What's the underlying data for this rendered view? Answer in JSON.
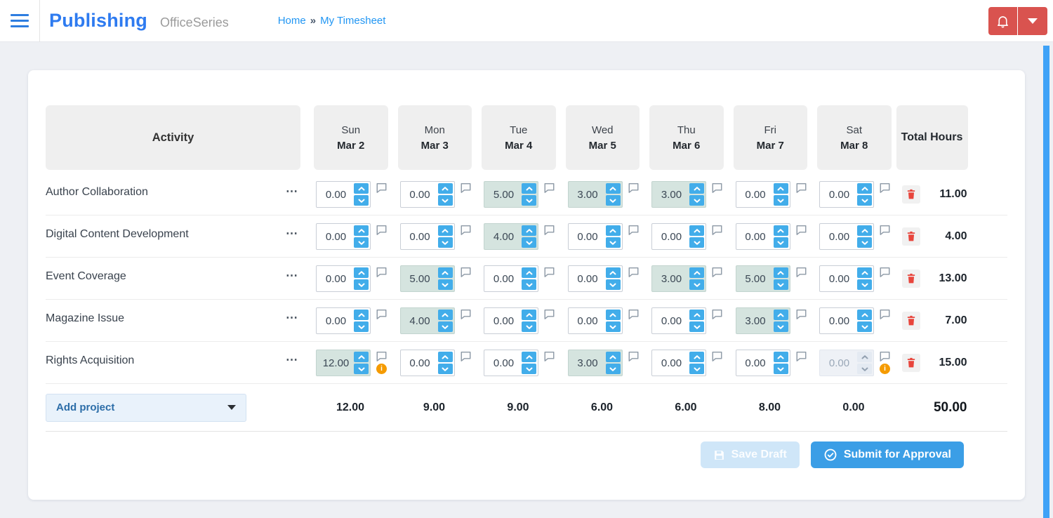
{
  "topbar": {
    "app_title": "Publishing",
    "app_subtitle": "OfficeSeries",
    "breadcrumb": {
      "home": "Home",
      "separator": "»",
      "current": "My Timesheet"
    }
  },
  "table": {
    "activity_header": "Activity",
    "total_header": "Total Hours",
    "menu_icon": "⋯",
    "days": [
      {
        "name": "Sun",
        "date": "Mar 2"
      },
      {
        "name": "Mon",
        "date": "Mar 3"
      },
      {
        "name": "Tue",
        "date": "Mar 4"
      },
      {
        "name": "Wed",
        "date": "Mar 5"
      },
      {
        "name": "Thu",
        "date": "Mar 6"
      },
      {
        "name": "Fri",
        "date": "Mar 7"
      },
      {
        "name": "Sat",
        "date": "Mar 8"
      }
    ],
    "rows": [
      {
        "activity": "Author Collaboration",
        "total": "11.00",
        "cells": [
          {
            "value": "0.00",
            "state": "normal",
            "info": false
          },
          {
            "value": "0.00",
            "state": "normal",
            "info": false
          },
          {
            "value": "5.00",
            "state": "highlighted",
            "info": false
          },
          {
            "value": "3.00",
            "state": "highlighted",
            "info": false
          },
          {
            "value": "3.00",
            "state": "highlighted",
            "info": false
          },
          {
            "value": "0.00",
            "state": "normal",
            "info": false
          },
          {
            "value": "0.00",
            "state": "normal",
            "info": false
          }
        ]
      },
      {
        "activity": "Digital Content Development",
        "total": "4.00",
        "cells": [
          {
            "value": "0.00",
            "state": "normal",
            "info": false
          },
          {
            "value": "0.00",
            "state": "normal",
            "info": false
          },
          {
            "value": "4.00",
            "state": "highlighted",
            "info": false
          },
          {
            "value": "0.00",
            "state": "normal",
            "info": false
          },
          {
            "value": "0.00",
            "state": "normal",
            "info": false
          },
          {
            "value": "0.00",
            "state": "normal",
            "info": false
          },
          {
            "value": "0.00",
            "state": "normal",
            "info": false
          }
        ]
      },
      {
        "activity": "Event Coverage",
        "total": "13.00",
        "cells": [
          {
            "value": "0.00",
            "state": "normal",
            "info": false
          },
          {
            "value": "5.00",
            "state": "highlighted",
            "info": false
          },
          {
            "value": "0.00",
            "state": "normal",
            "info": false
          },
          {
            "value": "0.00",
            "state": "normal",
            "info": false
          },
          {
            "value": "3.00",
            "state": "highlighted",
            "info": false
          },
          {
            "value": "5.00",
            "state": "highlighted",
            "info": false
          },
          {
            "value": "0.00",
            "state": "normal",
            "info": false
          }
        ]
      },
      {
        "activity": "Magazine Issue",
        "total": "7.00",
        "cells": [
          {
            "value": "0.00",
            "state": "normal",
            "info": false
          },
          {
            "value": "4.00",
            "state": "highlighted",
            "info": false
          },
          {
            "value": "0.00",
            "state": "normal",
            "info": false
          },
          {
            "value": "0.00",
            "state": "normal",
            "info": false
          },
          {
            "value": "0.00",
            "state": "normal",
            "info": false
          },
          {
            "value": "3.00",
            "state": "highlighted",
            "info": false
          },
          {
            "value": "0.00",
            "state": "normal",
            "info": false
          }
        ]
      },
      {
        "activity": "Rights Acquisition",
        "total": "15.00",
        "cells": [
          {
            "value": "12.00",
            "state": "highlighted",
            "info": true
          },
          {
            "value": "0.00",
            "state": "normal",
            "info": false
          },
          {
            "value": "0.00",
            "state": "normal",
            "info": false
          },
          {
            "value": "3.00",
            "state": "highlighted",
            "info": false
          },
          {
            "value": "0.00",
            "state": "normal",
            "info": false
          },
          {
            "value": "0.00",
            "state": "normal",
            "info": false
          },
          {
            "value": "0.00",
            "state": "disabled",
            "info": true
          }
        ]
      }
    ],
    "footer": {
      "add_project_label": "Add project",
      "day_totals": [
        "12.00",
        "9.00",
        "9.00",
        "6.00",
        "6.00",
        "8.00",
        "0.00"
      ],
      "grand_total": "50.00"
    }
  },
  "actions": {
    "save_draft_label": "Save Draft",
    "submit_label": "Submit for Approval"
  },
  "colors": {
    "brand_blue": "#2e7bf0",
    "link_blue": "#2196f3",
    "accent_blue": "#42adea",
    "submit_blue": "#3b9ee6",
    "topbar_red": "#d9534f",
    "trash_red": "#e8453c",
    "highlight_teal": "#d5e4df",
    "warning_orange": "#f59b00",
    "scrollbar_blue": "#3fa2f7"
  }
}
